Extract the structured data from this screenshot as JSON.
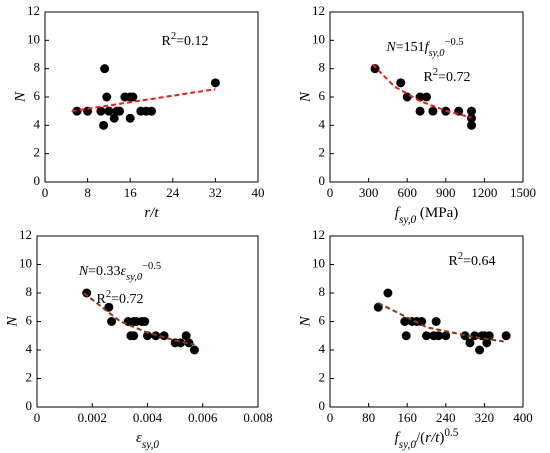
{
  "chart_data": [
    {
      "type": "scatter",
      "y_label": "N",
      "x_label": [
        {
          "text": "r/t",
          "italic": true
        }
      ],
      "xlim": [
        0,
        40
      ],
      "xticks": [
        0,
        8,
        16,
        24,
        32,
        40
      ],
      "ylim": [
        0,
        12
      ],
      "yticks": [
        0,
        2,
        4,
        6,
        8,
        10,
        12
      ],
      "annotations": [
        [
          {
            "text": "R"
          },
          {
            "text": "2",
            "sup": true
          },
          {
            "text": "=0.12"
          }
        ]
      ],
      "series": [
        {
          "type": "scatter",
          "color": "#000000",
          "x": [
            6,
            8,
            10.5,
            11,
            11.2,
            11.6,
            12,
            13,
            13.5,
            14,
            15,
            16,
            16,
            16.5,
            18,
            19,
            20,
            32
          ],
          "values": [
            5,
            5,
            5,
            4,
            8,
            6,
            5,
            4.5,
            5,
            5,
            6,
            6,
            4.5,
            6,
            5,
            5,
            5,
            7
          ]
        },
        {
          "type": "line",
          "color": "#e8201c",
          "dashed": true,
          "x": [
            5,
            32
          ],
          "values": [
            5.0,
            6.55
          ]
        }
      ]
    },
    {
      "type": "scatter",
      "y_label": "N",
      "x_label": [
        {
          "text": "f",
          "italic": true
        },
        {
          "text": "sy,0",
          "italic": true,
          "sub": true
        },
        {
          "text": " (MPa)"
        }
      ],
      "xlim": [
        0,
        1500
      ],
      "xticks": [
        0,
        300,
        600,
        900,
        1200,
        1500
      ],
      "ylim": [
        0,
        12
      ],
      "yticks": [
        0,
        2,
        4,
        6,
        8,
        10,
        12
      ],
      "annotations": [
        [
          {
            "text": "N",
            "italic": true
          },
          {
            "text": "=151"
          },
          {
            "text": "f",
            "italic": true
          },
          {
            "text": "sy,0",
            "italic": true,
            "sub": true
          },
          {
            "text": "−0.5",
            "sup": true
          }
        ],
        [
          {
            "text": "R"
          },
          {
            "text": "2",
            "sup": true
          },
          {
            "text": "=0.72"
          }
        ]
      ],
      "series": [
        {
          "type": "scatter",
          "color": "#000000",
          "x": [
            350,
            550,
            600,
            700,
            700,
            750,
            800,
            900,
            1000,
            1100,
            1100,
            1100
          ],
          "values": [
            8,
            7,
            6,
            6,
            5,
            6,
            5,
            5,
            5,
            5,
            4,
            4.5
          ]
        },
        {
          "type": "line",
          "color": "#e8201c",
          "dashed": true,
          "x": [
            330,
            500,
            700,
            900,
            1100
          ],
          "values": [
            8.31,
            6.75,
            5.71,
            5.03,
            4.55
          ]
        }
      ]
    },
    {
      "type": "scatter",
      "y_label": "N",
      "x_label": [
        {
          "text": "ε",
          "italic": true
        },
        {
          "text": "sy,0",
          "italic": true,
          "sub": true
        }
      ],
      "xlim": [
        0,
        0.008
      ],
      "xticks": [
        0,
        0.002,
        0.004,
        0.006,
        0.008
      ],
      "ylim": [
        0,
        12
      ],
      "yticks": [
        0,
        2,
        4,
        6,
        8,
        10,
        12
      ],
      "annotations": [
        [
          {
            "text": "N",
            "italic": true
          },
          {
            "text": "=0.33"
          },
          {
            "text": "ε",
            "italic": true
          },
          {
            "text": "sy,0",
            "italic": true,
            "sub": true
          },
          {
            "text": "−0.5",
            "sup": true
          }
        ],
        [
          {
            "text": "R"
          },
          {
            "text": "2",
            "sup": true
          },
          {
            "text": "=0.72"
          }
        ]
      ],
      "series": [
        {
          "type": "scatter",
          "color": "#000000",
          "x": [
            0.0018,
            0.0026,
            0.0027,
            0.0033,
            0.0034,
            0.0035,
            0.0035,
            0.0036,
            0.0038,
            0.0039,
            0.004,
            0.0043,
            0.0046,
            0.005,
            0.0052,
            0.0054,
            0.0055,
            0.0057
          ],
          "values": [
            8,
            7,
            6,
            6,
            5,
            6,
            5,
            6,
            6,
            6,
            5,
            5,
            5,
            4.5,
            4.5,
            5,
            4.5,
            4
          ]
        },
        {
          "type": "line",
          "color": "#8b3a12",
          "dashed": true,
          "x": [
            0.0017,
            0.003,
            0.004,
            0.005,
            0.0057
          ],
          "values": [
            8.0,
            6.02,
            5.22,
            4.67,
            4.37
          ]
        }
      ]
    },
    {
      "type": "scatter",
      "y_label": "N",
      "x_label": [
        {
          "text": "f",
          "italic": true
        },
        {
          "text": "sy,0",
          "italic": true,
          "sub": true
        },
        {
          "text": "/("
        },
        {
          "text": "r/t",
          "italic": true
        },
        {
          "text": ")"
        },
        {
          "text": "0.5",
          "sup": true
        }
      ],
      "xlim": [
        0,
        400
      ],
      "xticks": [
        0,
        80,
        160,
        240,
        320,
        400
      ],
      "ylim": [
        0,
        12
      ],
      "yticks": [
        0,
        2,
        4,
        6,
        8,
        10,
        12
      ],
      "annotations": [
        [
          {
            "text": "R"
          },
          {
            "text": "2",
            "sup": true
          },
          {
            "text": "=0.64"
          }
        ]
      ],
      "series": [
        {
          "type": "scatter",
          "color": "#000000",
          "x": [
            100,
            120,
            155,
            158,
            170,
            180,
            190,
            200,
            215,
            220,
            225,
            240,
            280,
            290,
            300,
            310,
            315,
            320,
            325,
            330,
            365
          ],
          "values": [
            7,
            8,
            6,
            5,
            6,
            6,
            6,
            5,
            5,
            6,
            5,
            5,
            5,
            4.5,
            5,
            4,
            5,
            5,
            4.5,
            5,
            5
          ]
        },
        {
          "type": "line",
          "color": "#8b3a12",
          "dashed": true,
          "x": [
            100,
            200,
            300,
            360
          ],
          "values": [
            7.3,
            5.6,
            4.9,
            4.6
          ]
        }
      ]
    }
  ]
}
